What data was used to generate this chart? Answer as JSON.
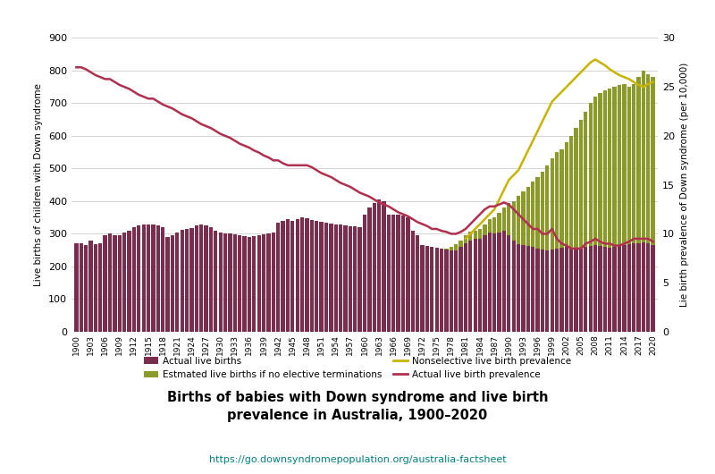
{
  "years": [
    1900,
    1901,
    1902,
    1903,
    1904,
    1905,
    1906,
    1907,
    1908,
    1909,
    1910,
    1911,
    1912,
    1913,
    1914,
    1915,
    1916,
    1917,
    1918,
    1919,
    1920,
    1921,
    1922,
    1923,
    1924,
    1925,
    1926,
    1927,
    1928,
    1929,
    1930,
    1931,
    1932,
    1933,
    1934,
    1935,
    1936,
    1937,
    1938,
    1939,
    1940,
    1941,
    1942,
    1943,
    1944,
    1945,
    1946,
    1947,
    1948,
    1949,
    1950,
    1951,
    1952,
    1953,
    1954,
    1955,
    1956,
    1957,
    1958,
    1959,
    1960,
    1961,
    1962,
    1963,
    1964,
    1965,
    1966,
    1967,
    1968,
    1969,
    1970,
    1971,
    1972,
    1973,
    1974,
    1975,
    1976,
    1977,
    1978,
    1979,
    1980,
    1981,
    1982,
    1983,
    1984,
    1985,
    1986,
    1987,
    1988,
    1989,
    1990,
    1991,
    1992,
    1993,
    1994,
    1995,
    1996,
    1997,
    1998,
    1999,
    2000,
    2001,
    2002,
    2003,
    2004,
    2005,
    2006,
    2007,
    2008,
    2009,
    2010,
    2011,
    2012,
    2013,
    2014,
    2015,
    2016,
    2017,
    2018,
    2019,
    2020
  ],
  "actual_births": [
    270,
    272,
    265,
    280,
    268,
    270,
    296,
    300,
    295,
    295,
    305,
    310,
    320,
    325,
    330,
    330,
    328,
    325,
    320,
    290,
    295,
    305,
    312,
    315,
    318,
    325,
    328,
    325,
    320,
    310,
    305,
    302,
    300,
    298,
    295,
    292,
    290,
    292,
    295,
    298,
    300,
    305,
    335,
    340,
    345,
    340,
    345,
    350,
    348,
    342,
    340,
    338,
    335,
    332,
    330,
    328,
    326,
    324,
    322,
    320,
    360,
    380,
    395,
    405,
    400,
    360,
    360,
    358,
    355,
    350,
    310,
    295,
    265,
    262,
    260,
    258,
    255,
    252,
    250,
    250,
    260,
    270,
    280,
    285,
    285,
    295,
    305,
    302,
    305,
    310,
    295,
    280,
    268,
    265,
    262,
    260,
    255,
    252,
    250,
    252,
    255,
    258,
    260,
    258,
    255,
    255,
    260,
    262,
    265,
    262,
    260,
    258,
    260,
    262,
    265,
    268,
    270,
    272,
    275,
    272,
    265
  ],
  "estimated_no_terminations": [
    270,
    272,
    265,
    280,
    268,
    270,
    296,
    300,
    295,
    295,
    305,
    310,
    320,
    325,
    330,
    330,
    328,
    325,
    320,
    290,
    295,
    305,
    312,
    315,
    318,
    325,
    328,
    325,
    320,
    310,
    305,
    302,
    300,
    298,
    295,
    292,
    290,
    292,
    295,
    298,
    300,
    305,
    335,
    340,
    345,
    340,
    345,
    350,
    348,
    342,
    340,
    338,
    335,
    332,
    330,
    328,
    326,
    324,
    322,
    320,
    360,
    380,
    395,
    405,
    400,
    360,
    360,
    358,
    355,
    350,
    310,
    295,
    265,
    262,
    260,
    258,
    255,
    255,
    260,
    268,
    280,
    295,
    308,
    310,
    315,
    330,
    345,
    350,
    365,
    380,
    395,
    400,
    415,
    430,
    445,
    460,
    475,
    490,
    510,
    530,
    550,
    560,
    580,
    600,
    625,
    650,
    675,
    700,
    720,
    730,
    740,
    745,
    750,
    755,
    760,
    750,
    760,
    780,
    800,
    790,
    780
  ],
  "actual_prevalence": [
    27.0,
    27.0,
    26.8,
    26.5,
    26.2,
    26.0,
    25.8,
    25.8,
    25.5,
    25.2,
    25.0,
    24.8,
    24.5,
    24.2,
    24.0,
    23.8,
    23.8,
    23.5,
    23.2,
    23.0,
    22.8,
    22.5,
    22.2,
    22.0,
    21.8,
    21.5,
    21.2,
    21.0,
    20.8,
    20.5,
    20.2,
    20.0,
    19.8,
    19.5,
    19.2,
    19.0,
    18.8,
    18.5,
    18.3,
    18.0,
    17.8,
    17.5,
    17.5,
    17.2,
    17.0,
    17.0,
    17.0,
    17.0,
    17.0,
    16.8,
    16.5,
    16.2,
    16.0,
    15.8,
    15.5,
    15.2,
    15.0,
    14.8,
    14.5,
    14.2,
    14.0,
    13.8,
    13.5,
    13.2,
    13.0,
    12.8,
    12.5,
    12.2,
    12.0,
    11.8,
    11.5,
    11.2,
    11.0,
    10.8,
    10.5,
    10.5,
    10.3,
    10.2,
    10.0,
    10.0,
    10.2,
    10.5,
    11.0,
    11.5,
    12.0,
    12.5,
    12.8,
    12.8,
    13.0,
    13.2,
    13.0,
    12.5,
    12.0,
    11.5,
    11.0,
    10.5,
    10.5,
    10.0,
    10.0,
    10.5,
    9.5,
    9.0,
    8.8,
    8.5,
    8.5,
    8.5,
    9.0,
    9.2,
    9.5,
    9.2,
    9.0,
    9.0,
    8.8,
    8.8,
    9.0,
    9.2,
    9.5,
    9.5,
    9.5,
    9.5,
    9.2
  ],
  "nonselective_prevalence": [
    null,
    null,
    null,
    null,
    null,
    null,
    null,
    null,
    null,
    null,
    null,
    null,
    null,
    null,
    null,
    null,
    null,
    null,
    null,
    null,
    null,
    null,
    null,
    null,
    null,
    null,
    null,
    null,
    null,
    null,
    null,
    null,
    null,
    null,
    null,
    null,
    null,
    null,
    null,
    null,
    null,
    null,
    null,
    null,
    null,
    null,
    null,
    null,
    null,
    null,
    null,
    null,
    null,
    null,
    null,
    null,
    null,
    null,
    null,
    null,
    null,
    null,
    null,
    null,
    null,
    null,
    null,
    null,
    null,
    null,
    null,
    null,
    null,
    null,
    null,
    null,
    null,
    null,
    null,
    null,
    null,
    9.5,
    10.0,
    10.5,
    11.0,
    11.5,
    12.0,
    12.5,
    13.5,
    14.5,
    15.5,
    16.0,
    16.5,
    17.5,
    18.5,
    19.5,
    20.5,
    21.5,
    22.5,
    23.5,
    24.0,
    24.5,
    25.0,
    25.5,
    26.0,
    26.5,
    27.0,
    27.5,
    27.8,
    27.5,
    27.2,
    26.8,
    26.5,
    26.2,
    26.0,
    25.8,
    25.5,
    25.2,
    25.0,
    25.3,
    25.5
  ],
  "left_ylim": [
    0,
    900
  ],
  "left_yticks": [
    0,
    100,
    200,
    300,
    400,
    500,
    600,
    700,
    800,
    900
  ],
  "right_ylim": [
    0,
    30
  ],
  "right_yticks": [
    0.0,
    5.0,
    10.0,
    15.0,
    20.0,
    25.0,
    30.0
  ],
  "bar_color_actual": "#7b2d4e",
  "bar_color_estimated": "#8c9a2a",
  "line_color_nonselective": "#c8b400",
  "line_color_actual_prev": "#b03050",
  "title": "Births of babies with Down syndrome and live birth\nprevalence in Australia, 1900–2020",
  "ylabel_left": "Live births of children with Down syndrome",
  "ylabel_right": "Lie birth prevalence of Down syndrome (per 10,000)",
  "url": "https://go.downsyndromepopulation.org/australia-factsheet",
  "legend_labels": [
    "Actual live births",
    "Estmated live births if no elective terminations",
    "Nonselective live birth prevalence",
    "Actual live birth prevalence"
  ],
  "xtick_years": [
    1900,
    1903,
    1906,
    1909,
    1912,
    1915,
    1918,
    1921,
    1924,
    1927,
    1930,
    1933,
    1936,
    1939,
    1942,
    1945,
    1948,
    1951,
    1954,
    1957,
    1960,
    1963,
    1966,
    1969,
    1972,
    1975,
    1978,
    1981,
    1984,
    1987,
    1990,
    1993,
    1996,
    1999,
    2002,
    2005,
    2008,
    2011,
    2014,
    2017,
    2020
  ],
  "background_color": "#ffffff"
}
